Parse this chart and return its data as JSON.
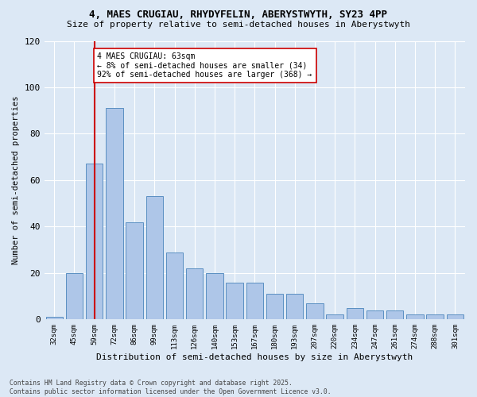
{
  "title1": "4, MAES CRUGIAU, RHYDYFELIN, ABERYSTWYTH, SY23 4PP",
  "title2": "Size of property relative to semi-detached houses in Aberystwyth",
  "xlabel": "Distribution of semi-detached houses by size in Aberystwyth",
  "ylabel": "Number of semi-detached properties",
  "annotation_title": "4 MAES CRUGIAU: 63sqm",
  "annotation_line1": "← 8% of semi-detached houses are smaller (34)",
  "annotation_line2": "92% of semi-detached houses are larger (368) →",
  "footer1": "Contains HM Land Registry data © Crown copyright and database right 2025.",
  "footer2": "Contains public sector information licensed under the Open Government Licence v3.0.",
  "bar_labels": [
    "32sqm",
    "45sqm",
    "59sqm",
    "72sqm",
    "86sqm",
    "99sqm",
    "113sqm",
    "126sqm",
    "140sqm",
    "153sqm",
    "167sqm",
    "180sqm",
    "193sqm",
    "207sqm",
    "220sqm",
    "234sqm",
    "247sqm",
    "261sqm",
    "274sqm",
    "288sqm",
    "301sqm"
  ],
  "bar_values": [
    1,
    20,
    67,
    91,
    42,
    53,
    29,
    22,
    20,
    16,
    16,
    11,
    11,
    7,
    2,
    5,
    4,
    4,
    2,
    2,
    2
  ],
  "bar_color": "#aec6e8",
  "bar_edge_color": "#5a8fc2",
  "vline_x_index": 2,
  "vline_color": "#cc0000",
  "background_color": "#dce8f5",
  "grid_color": "#ffffff",
  "ylim": [
    0,
    120
  ],
  "yticks": [
    0,
    20,
    40,
    60,
    80,
    100,
    120
  ]
}
